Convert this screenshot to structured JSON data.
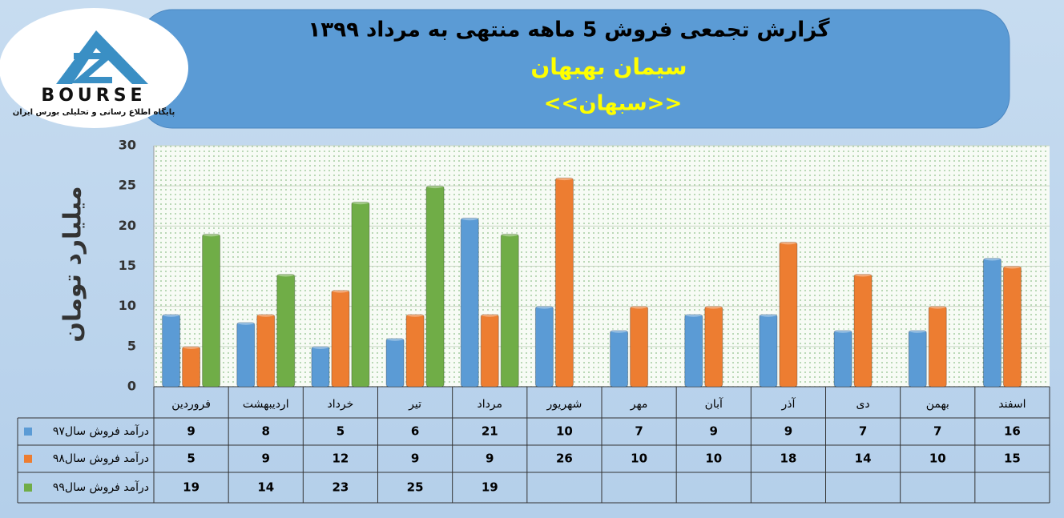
{
  "chart_data": {
    "type": "bar",
    "title": "گزارش تجمعی فروش  5 ماهه منتهی به مرداد ۱۳۹۹",
    "subtitle": "سیمان بهبهان",
    "symbol": "<<سبهان>>",
    "logo_text": "BOURSE",
    "logo_caption": "پایگاه اطلاع رسانی و تحلیلی بورس ایران",
    "y_label": "میلیارد تومان",
    "categories": [
      "فروردین",
      "اردیبهشت",
      "خرداد",
      "تیر",
      "مرداد",
      "شهریور",
      "مهر",
      "آبان",
      "آذر",
      "دی",
      "بهمن",
      "اسفند"
    ],
    "series": [
      {
        "name": "درآمد فروش سال۹۷",
        "color": "#5b9bd5",
        "values": [
          9,
          8,
          5,
          6,
          21,
          10,
          7,
          9,
          9,
          7,
          7,
          16
        ]
      },
      {
        "name": "درآمد فروش سال۹۸",
        "color": "#ed7d31",
        "values": [
          5,
          9,
          12,
          9,
          9,
          26,
          10,
          10,
          18,
          14,
          10,
          15
        ]
      },
      {
        "name": "درآمد فروش سال۹۹",
        "color": "#70ad47",
        "values": [
          19,
          14,
          23,
          25,
          19,
          null,
          null,
          null,
          null,
          null,
          null,
          null
        ]
      }
    ],
    "ylim": [
      0,
      30
    ],
    "yticks": [
      0,
      5,
      10,
      15,
      20,
      25,
      30
    ],
    "grid": true
  }
}
